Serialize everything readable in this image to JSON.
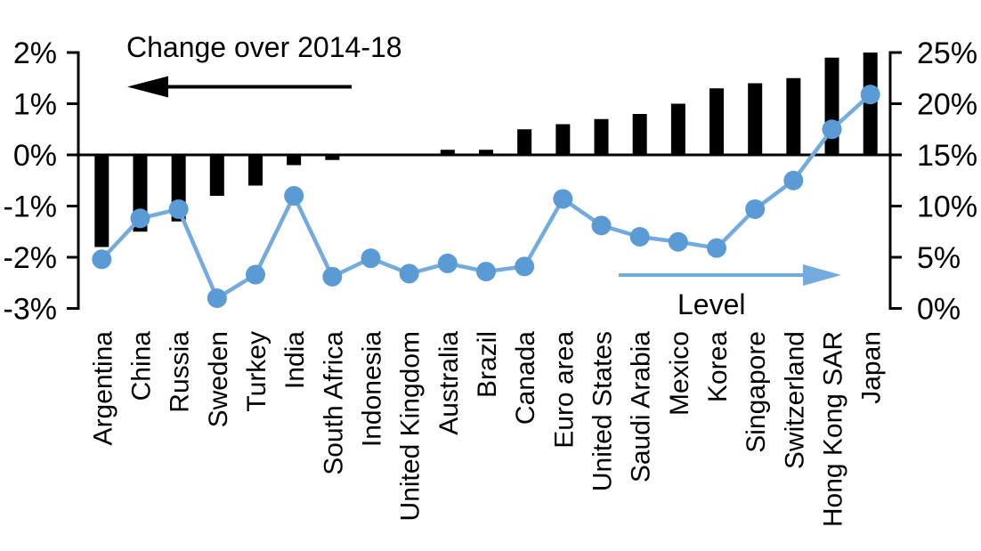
{
  "chart_data": {
    "type": "combo-bar-line",
    "title": "",
    "categories": [
      "Argentina",
      "China",
      "Russia",
      "Sweden",
      "Turkey",
      "India",
      "South Africa",
      "Indonesia",
      "United Kingdom",
      "Australia",
      "Brazil",
      "Canada",
      "Euro area",
      "United States",
      "Saudi Arabia",
      "Mexico",
      "Korea",
      "Singapore",
      "Switzerland",
      "Hong Kong SAR",
      "Japan"
    ],
    "series": [
      {
        "name": "Change over 2014-18",
        "type": "bar",
        "axis": "left",
        "color": "#000000",
        "values": [
          -1.8,
          -1.5,
          -1.3,
          -0.8,
          -0.6,
          -0.2,
          -0.1,
          0,
          0,
          0.1,
          0.1,
          0.5,
          0.6,
          0.7,
          0.8,
          1.0,
          1.3,
          1.4,
          1.5,
          1.9,
          2.0
        ]
      },
      {
        "name": "Level",
        "type": "line",
        "axis": "right",
        "marker_color": "#5B9BD5",
        "line_color": "#74ABDE",
        "values": [
          4.8,
          8.8,
          9.7,
          1.0,
          3.3,
          11.0,
          3.1,
          4.9,
          3.4,
          4.4,
          3.6,
          4.1,
          10.7,
          8.1,
          7.0,
          6.5,
          5.9,
          9.7,
          12.5,
          17.5,
          20.9
        ]
      }
    ],
    "left_axis": {
      "unit": "%",
      "min": -3,
      "max": 2,
      "tick_labels": [
        "2%",
        "1%",
        "0%",
        "-1%",
        "-2%",
        "-3%"
      ],
      "tick_values": [
        2,
        1,
        0,
        -1,
        -2,
        -3
      ]
    },
    "right_axis": {
      "unit": "%",
      "min": 0,
      "max": 25,
      "tick_labels": [
        "25%",
        "20%",
        "15%",
        "10%",
        "5%",
        "0%"
      ],
      "tick_values": [
        25,
        20,
        15,
        10,
        5,
        0
      ]
    },
    "grid": false,
    "background": "#FFFFFF",
    "axis_color": "#000000"
  },
  "annotations": {
    "bar_label": "Change over 2014-18",
    "bar_arrow_direction": "left",
    "line_label": "Level",
    "line_arrow_direction": "right"
  }
}
